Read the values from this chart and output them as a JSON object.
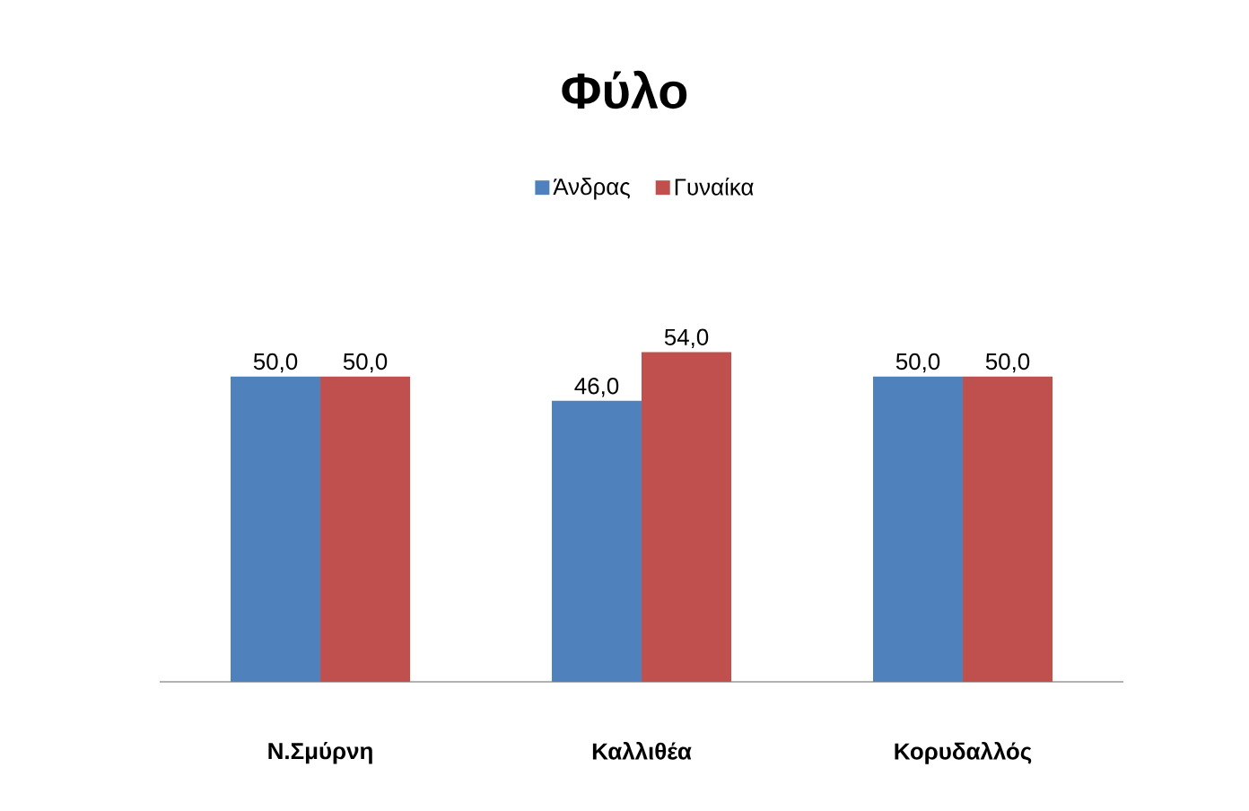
{
  "chart_data": {
    "type": "bar",
    "title": "Φύλο",
    "categories": [
      "Ν.Σμύρνη",
      "Καλλιθέα",
      "Κορυδαλλός"
    ],
    "series": [
      {
        "name": "Άνδρας",
        "color": "#4f81bd",
        "values": [
          50,
          46,
          50
        ],
        "value_labels": [
          "50,0",
          "46,0",
          "50,0"
        ]
      },
      {
        "name": "Γυναίκα",
        "color": "#c0504d",
        "values": [
          50,
          54,
          50
        ],
        "value_labels": [
          "50,0",
          "54,0",
          "50,0"
        ]
      }
    ],
    "legend": "top",
    "tick_labels": "x"
  }
}
